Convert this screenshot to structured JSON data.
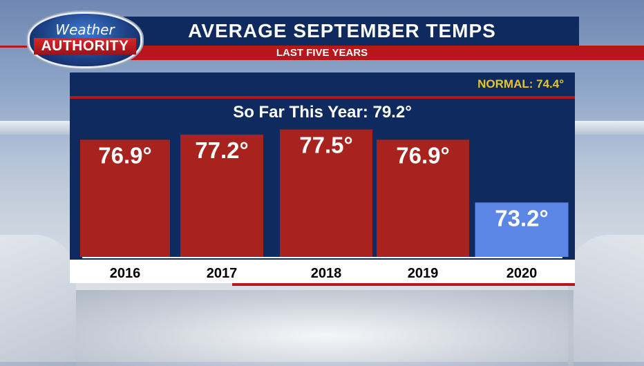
{
  "header": {
    "title": "AVERAGE SEPTEMBER TEMPS",
    "subtitle": "LAST FIVE YEARS"
  },
  "logo": {
    "line1": "Weather",
    "line2": "AUTHORITY"
  },
  "chart_data": {
    "type": "bar",
    "title": "AVERAGE SEPTEMBER TEMPS",
    "subtitle": "LAST FIVE YEARS",
    "normal_text": "NORMAL: 74.4°",
    "so_far_text": "So Far This Year: 79.2°",
    "categories": [
      "2016",
      "2017",
      "2018",
      "2019",
      "2020"
    ],
    "values": [
      76.9,
      77.2,
      77.5,
      76.9,
      73.2
    ],
    "labels": [
      "76.9°",
      "77.2°",
      "77.5°",
      "76.9°",
      "73.2°"
    ],
    "colors": [
      "#a8231e",
      "#a8231e",
      "#a8231e",
      "#a8231e",
      "#5b86e5"
    ],
    "ylim": [
      70,
      78
    ],
    "grid": false,
    "legend": "none"
  }
}
